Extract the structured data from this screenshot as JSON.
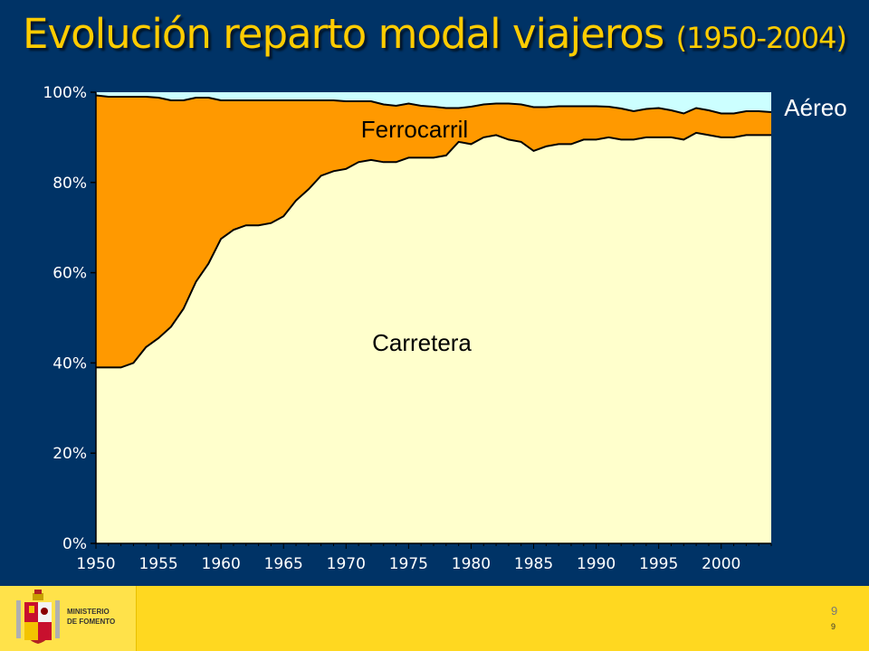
{
  "title": {
    "main": "Evolución reparto modal viajeros ",
    "years": "(1950-2004)"
  },
  "footer": {
    "logo_line1": "MINISTERIO",
    "logo_line2": "DE FOMENTO",
    "page_number_a": "9",
    "page_number_b": "9"
  },
  "colors": {
    "background": "#003366",
    "title": "#FFCC00",
    "carretera": "#FFFFCC",
    "ferrocarril": "#FF9900",
    "aereo": "#CCFFFF",
    "footer": "#FFD820"
  },
  "chart_data": {
    "type": "area",
    "stacked": "percent",
    "x": [
      1950,
      1951,
      1952,
      1953,
      1954,
      1955,
      1956,
      1957,
      1958,
      1959,
      1960,
      1961,
      1962,
      1963,
      1964,
      1965,
      1966,
      1967,
      1968,
      1969,
      1970,
      1971,
      1972,
      1973,
      1974,
      1975,
      1976,
      1977,
      1978,
      1979,
      1980,
      1981,
      1982,
      1983,
      1984,
      1985,
      1986,
      1987,
      1988,
      1989,
      1990,
      1991,
      1992,
      1993,
      1994,
      1995,
      1996,
      1997,
      1998,
      1999,
      2000,
      2001,
      2002,
      2003,
      2004
    ],
    "series": [
      {
        "name": "Carretera",
        "values": [
          39,
          39,
          39,
          40,
          43.5,
          45.5,
          48,
          52,
          58,
          62,
          67.5,
          69.5,
          70.5,
          70.5,
          71,
          72.5,
          76,
          78.5,
          81.5,
          82.5,
          83,
          84.5,
          85,
          84.5,
          84.5,
          85.5,
          85.5,
          85.5,
          86,
          89,
          88.5,
          90,
          90.5,
          89.5,
          89,
          87,
          88,
          88.5,
          88.5,
          89.5,
          89.5,
          90,
          89.5,
          89.5,
          90,
          90,
          90,
          89.5,
          91,
          90.5,
          90,
          90,
          90.5,
          90.5,
          90.5
        ]
      },
      {
        "name": "Ferrocarril",
        "values": [
          60.3,
          60,
          60,
          59,
          55.5,
          53.3,
          50.2,
          46.2,
          40.8,
          36.8,
          30.7,
          28.7,
          27.7,
          27.7,
          27.2,
          25.7,
          22.2,
          19.7,
          16.7,
          15.7,
          15,
          13.5,
          13,
          12.8,
          12.5,
          12,
          11.5,
          11.3,
          10.5,
          7.5,
          8.3,
          7.3,
          7,
          8,
          8.3,
          9.7,
          8.7,
          8.4,
          8.4,
          7.4,
          7.4,
          6.8,
          6.9,
          6.3,
          6.3,
          6.5,
          6,
          5.8,
          5.5,
          5.5,
          5.3,
          5.3,
          5.3,
          5.3,
          5.1
        ]
      },
      {
        "name": "Aéreo",
        "values": [
          0.7,
          1,
          1,
          1,
          1,
          1.2,
          1.8,
          1.8,
          1.2,
          1.2,
          1.8,
          1.8,
          1.8,
          1.8,
          1.8,
          1.8,
          1.8,
          1.8,
          1.8,
          1.8,
          2,
          2,
          2,
          2.7,
          3,
          2.5,
          3,
          3.2,
          3.5,
          3.5,
          3.2,
          2.7,
          2.5,
          2.5,
          2.7,
          3.3,
          3.3,
          3.1,
          3.1,
          3.1,
          3.1,
          3.2,
          3.6,
          4.2,
          3.7,
          3.5,
          4,
          4.7,
          3.5,
          4,
          4.7,
          4.7,
          4.2,
          4.2,
          4.4
        ]
      }
    ],
    "labels": [
      "Carretera",
      "Ferrocarril",
      "Aéreo"
    ],
    "y_ticks": [
      "0%",
      "20%",
      "40%",
      "60%",
      "80%",
      "100%"
    ],
    "y_tick_values": [
      0,
      20,
      40,
      60,
      80,
      100
    ],
    "x_ticks": [
      "1950",
      "1955",
      "1960",
      "1965",
      "1970",
      "1975",
      "1980",
      "1985",
      "1990",
      "1995",
      "2000"
    ],
    "x_tick_values": [
      1950,
      1955,
      1960,
      1965,
      1970,
      1975,
      1980,
      1985,
      1990,
      1995,
      2000
    ],
    "xlim": [
      1950,
      2004
    ],
    "ylim": [
      0,
      100
    ],
    "grid": false
  }
}
